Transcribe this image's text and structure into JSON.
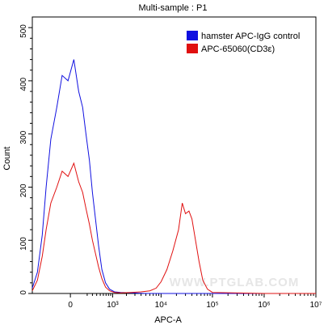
{
  "chart_data": {
    "type": "line",
    "title": "Multi-sample : P1",
    "xlabel": "APC-A",
    "ylabel": "Count",
    "x_scale": "biexponential",
    "xlim": [
      -800,
      10000000
    ],
    "ylim": [
      0,
      520
    ],
    "x_ticks": [
      "0",
      "10³",
      "10⁴",
      "10⁵",
      "10⁶",
      "10⁷"
    ],
    "y_ticks": [
      "0",
      "100",
      "200",
      "300",
      "400",
      "500"
    ],
    "legend_position": "top-right",
    "watermark": "WWW.PTGLAB.COM",
    "series": [
      {
        "name": "hamster APC-IgG control",
        "color": "#1010e0",
        "x": [
          -800,
          -600,
          -450,
          -350,
          -250,
          -150,
          -80,
          -20,
          30,
          80,
          130,
          180,
          240,
          300,
          370,
          450,
          550,
          680,
          850,
          1100,
          1500,
          2500,
          5000,
          20000,
          100000,
          1000000,
          10000000
        ],
        "y": [
          10,
          40,
          110,
          200,
          290,
          350,
          410,
          400,
          440,
          380,
          350,
          300,
          250,
          190,
          140,
          90,
          45,
          20,
          8,
          3,
          2,
          1,
          0,
          0,
          0,
          0,
          0
        ]
      },
      {
        "name": "APC-65060(CD3ε)",
        "color": "#e01010",
        "x": [
          -800,
          -600,
          -450,
          -350,
          -250,
          -150,
          -80,
          -20,
          30,
          80,
          130,
          180,
          240,
          300,
          370,
          450,
          550,
          680,
          850,
          1100,
          1500,
          2500,
          4000,
          6000,
          8000,
          10000,
          13000,
          17000,
          22000,
          26000,
          30000,
          35000,
          40000,
          47000,
          55000,
          65000,
          80000,
          100000,
          1000000,
          10000000
        ],
        "y": [
          5,
          25,
          70,
          120,
          170,
          200,
          230,
          220,
          245,
          210,
          190,
          160,
          130,
          100,
          75,
          50,
          28,
          12,
          5,
          2,
          1,
          2,
          3,
          5,
          10,
          22,
          45,
          80,
          120,
          170,
          150,
          155,
          140,
          100,
          60,
          25,
          8,
          2,
          0,
          0
        ]
      }
    ]
  }
}
